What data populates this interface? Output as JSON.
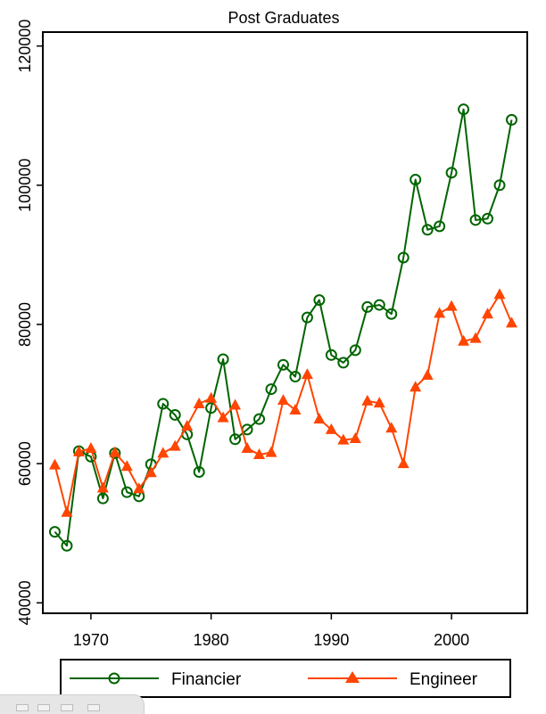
{
  "chart_data": {
    "type": "line",
    "title": "Post Graduates",
    "xlabel": "",
    "ylabel": "",
    "xlim": [
      1966,
      2006.3
    ],
    "ylim": [
      38500,
      122000
    ],
    "xticks": [
      1970,
      1980,
      1990,
      2000
    ],
    "yticks": [
      40000,
      60000,
      80000,
      100000,
      120000
    ],
    "grid": false,
    "legend_position": "bottom",
    "series": [
      {
        "name": "Financier",
        "color": "#006400",
        "marker": "circle",
        "x": [
          1967,
          1968,
          1969,
          1970,
          1971,
          1972,
          1973,
          1974,
          1975,
          1976,
          1977,
          1978,
          1979,
          1980,
          1981,
          1982,
          1983,
          1984,
          1985,
          1986,
          1987,
          1988,
          1989,
          1990,
          1991,
          1992,
          1993,
          1994,
          1995,
          1996,
          1997,
          1998,
          1999,
          2000,
          2001,
          2002,
          2003,
          2004,
          2005
        ],
        "values": [
          50200,
          48200,
          61800,
          61000,
          55000,
          61500,
          55900,
          55300,
          59900,
          68600,
          67000,
          64200,
          58800,
          68000,
          75000,
          63500,
          64900,
          66400,
          70700,
          74200,
          72500,
          81000,
          83500,
          75600,
          74500,
          76300,
          82500,
          82800,
          81500,
          89600,
          100800,
          93600,
          94100,
          101800,
          110900,
          95000,
          95200,
          100000,
          109400
        ]
      },
      {
        "name": "Engineer",
        "color": "#ff4500",
        "marker": "triangle",
        "x": [
          1967,
          1968,
          1969,
          1970,
          1971,
          1972,
          1973,
          1974,
          1975,
          1976,
          1977,
          1978,
          1979,
          1980,
          1981,
          1982,
          1983,
          1984,
          1985,
          1986,
          1987,
          1988,
          1989,
          1990,
          1991,
          1992,
          1993,
          1994,
          1995,
          1996,
          1997,
          1998,
          1999,
          2000,
          2001,
          2002,
          2003,
          2004,
          2005
        ],
        "values": [
          59800,
          53000,
          61700,
          62200,
          56500,
          61600,
          59600,
          56400,
          58700,
          61500,
          62500,
          65400,
          68600,
          69400,
          66600,
          68400,
          62200,
          61300,
          61600,
          69100,
          67700,
          72800,
          66400,
          64900,
          63400,
          63600,
          69000,
          68700,
          65100,
          60000,
          71000,
          72700,
          81600,
          82600,
          77600,
          78000,
          81500,
          84300,
          80200
        ]
      }
    ]
  }
}
